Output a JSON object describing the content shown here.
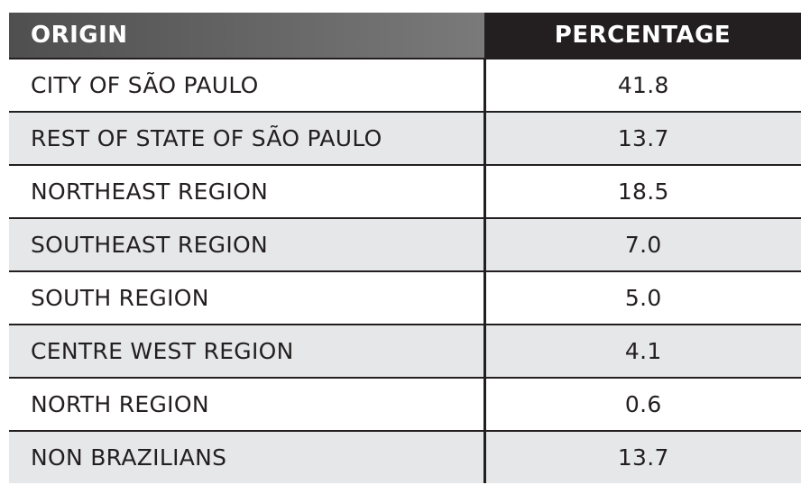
{
  "table": {
    "header": [
      "ORIGIN",
      "PERCENTAGE"
    ],
    "rows": [
      [
        "CITY OF SÃO PAULO",
        "41.8"
      ],
      [
        "REST OF STATE OF SÃO PAULO",
        "13.7"
      ],
      [
        "NORTHEAST REGION",
        "18.5"
      ],
      [
        "SOUTHEAST REGION",
        "7.0"
      ],
      [
        "SOUTH REGION",
        "5.0"
      ],
      [
        "CENTRE WEST REGION",
        "4.1"
      ],
      [
        "NORTH REGION",
        "0.6"
      ],
      [
        "NON BRAZILIANS",
        "13.7"
      ]
    ]
  }
}
